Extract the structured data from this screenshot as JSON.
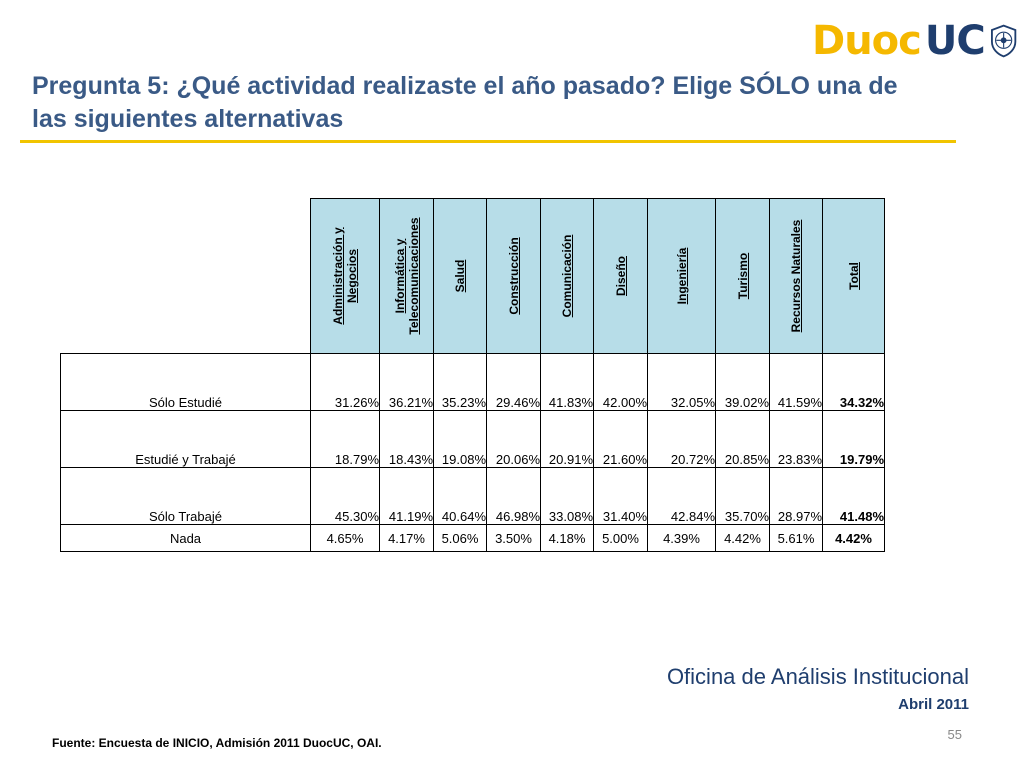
{
  "logo": {
    "part1": "Duoc",
    "part2": "UC"
  },
  "title": "Pregunta 5: ¿Qué actividad realizaste el año pasado? Elige SÓLO una de las siguientes alternativas",
  "table": {
    "columns": [
      "Administración y Negocios",
      "Informática y Telecomunicaciones",
      "Salud",
      "Construcción",
      "Comunicación",
      "Diseño",
      "Ingeniería",
      "Turismo",
      "Recursos Naturales",
      "Total"
    ],
    "rows": [
      {
        "label": "Sólo Estudié",
        "values": [
          "31.26%",
          "36.21%",
          "35.23%",
          "29.46%",
          "41.83%",
          "42.00%",
          "32.05%",
          "39.02%",
          "41.59%",
          "34.32%"
        ]
      },
      {
        "label": "Estudié y Trabajé",
        "values": [
          "18.79%",
          "18.43%",
          "19.08%",
          "20.06%",
          "20.91%",
          "21.60%",
          "20.72%",
          "20.85%",
          "23.83%",
          "19.79%"
        ]
      },
      {
        "label": "Sólo Trabajé",
        "values": [
          "45.30%",
          "41.19%",
          "40.64%",
          "46.98%",
          "33.08%",
          "31.40%",
          "42.84%",
          "35.70%",
          "28.97%",
          "41.48%"
        ]
      },
      {
        "label": "Nada",
        "values": [
          "4.65%",
          "4.17%",
          "5.06%",
          "3.50%",
          "4.18%",
          "5.00%",
          "4.39%",
          "4.42%",
          "5.61%",
          "4.42%"
        ]
      }
    ]
  },
  "footer": {
    "organization": "Oficina de Análisis Institucional",
    "date": "Abril 2011",
    "page_number": "55",
    "source": "Fuente: Encuesta de INICIO, Admisión 2011 DuocUC, OAI."
  },
  "colors": {
    "title": "#3a5a86",
    "rule": "#f1c400",
    "header_fill": "#b7dde8",
    "logo_yellow": "#f5b800",
    "logo_blue": "#1f3e6e"
  }
}
